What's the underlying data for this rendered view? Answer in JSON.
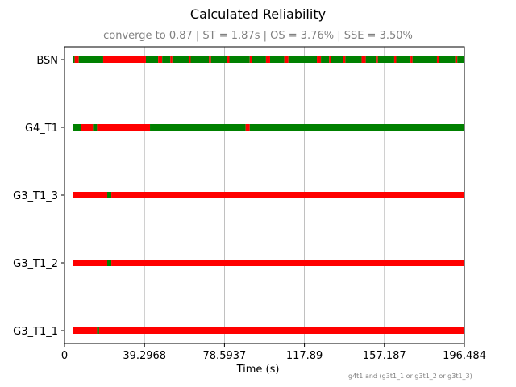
{
  "chart_data": {
    "type": "timeline",
    "title": "Calculated Reliability",
    "subtitle": "converge to 0.87 | ST = 1.87s | OS = 3.76% | SSE = 3.50%",
    "xlabel": "Time (s)",
    "xlim": [
      0,
      196.484
    ],
    "xticks": [
      "0",
      "39.2968",
      "78.5937",
      "117.89",
      "157.187",
      "196.484"
    ],
    "grid": "vertical",
    "footnote": "g4t1 and (g3t1_1 or g3t1_2 or g3t1_3)",
    "colors": {
      "up": "#008000",
      "down": "#ff0000"
    },
    "rows": [
      {
        "name": "BSN",
        "segments": [
          [
            4,
            5,
            "up"
          ],
          [
            5,
            7,
            "down"
          ],
          [
            7,
            19,
            "up"
          ],
          [
            19,
            40,
            "down"
          ],
          [
            40,
            46,
            "up"
          ],
          [
            46,
            48,
            "down"
          ],
          [
            48,
            52,
            "up"
          ],
          [
            52,
            53,
            "down"
          ],
          [
            53,
            61,
            "up"
          ],
          [
            61,
            62,
            "down"
          ],
          [
            62,
            71,
            "up"
          ],
          [
            71,
            72,
            "down"
          ],
          [
            72,
            80,
            "up"
          ],
          [
            80,
            81,
            "down"
          ],
          [
            81,
            91,
            "up"
          ],
          [
            91,
            92,
            "down"
          ],
          [
            92,
            99,
            "up"
          ],
          [
            99,
            101,
            "down"
          ],
          [
            101,
            108,
            "up"
          ],
          [
            108,
            110,
            "down"
          ],
          [
            110,
            124,
            "up"
          ],
          [
            124,
            126,
            "down"
          ],
          [
            126,
            130,
            "up"
          ],
          [
            130,
            131,
            "down"
          ],
          [
            131,
            137,
            "up"
          ],
          [
            137,
            138,
            "down"
          ],
          [
            138,
            146,
            "up"
          ],
          [
            146,
            148,
            "down"
          ],
          [
            148,
            153,
            "up"
          ],
          [
            153,
            154,
            "down"
          ],
          [
            154,
            162,
            "up"
          ],
          [
            162,
            163,
            "down"
          ],
          [
            163,
            170,
            "up"
          ],
          [
            170,
            171,
            "down"
          ],
          [
            171,
            183,
            "up"
          ],
          [
            183,
            184,
            "down"
          ],
          [
            184,
            192,
            "up"
          ],
          [
            192,
            193,
            "down"
          ],
          [
            193,
            196.484,
            "up"
          ]
        ]
      },
      {
        "name": "G4_T1",
        "segments": [
          [
            4,
            8,
            "up"
          ],
          [
            8,
            14,
            "down"
          ],
          [
            14,
            16,
            "up"
          ],
          [
            16,
            42,
            "down"
          ],
          [
            42,
            89,
            "up"
          ],
          [
            89,
            91,
            "down"
          ],
          [
            91,
            196.484,
            "up"
          ]
        ]
      },
      {
        "name": "G3_T1_3",
        "segments": [
          [
            4,
            21,
            "down"
          ],
          [
            21,
            23,
            "up"
          ],
          [
            23,
            196.484,
            "down"
          ]
        ]
      },
      {
        "name": "G3_T1_2",
        "segments": [
          [
            4,
            21,
            "down"
          ],
          [
            21,
            23,
            "up"
          ],
          [
            23,
            196.484,
            "down"
          ]
        ]
      },
      {
        "name": "G3_T1_1",
        "segments": [
          [
            4,
            16,
            "down"
          ],
          [
            16,
            17,
            "up"
          ],
          [
            17,
            196.484,
            "down"
          ]
        ]
      }
    ]
  }
}
